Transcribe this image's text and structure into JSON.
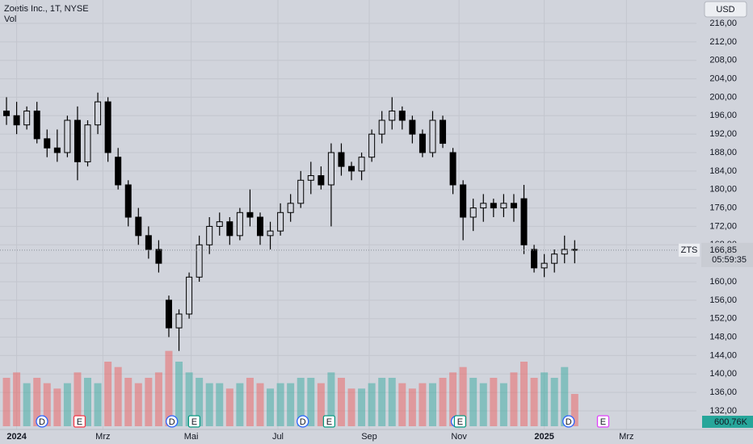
{
  "chart_data": {
    "type": "candlestick",
    "title": "Zoetis Inc., 1T, NYSE",
    "currency": "USD",
    "symbol_badge": "ZTS",
    "countdown": "05:59:35",
    "volume_badge": "600,76K",
    "last_price": {
      "value": 166.85,
      "label": "166,85"
    },
    "candle_color": "#000000",
    "up_color": "rgba(38,166,154,0.45)",
    "down_color": "rgba(239,83,80,0.45)",
    "open": [
      197,
      196,
      194,
      197,
      191,
      189,
      188,
      195,
      186,
      194,
      199,
      187,
      181,
      174,
      170,
      167,
      156,
      150,
      153,
      161,
      168,
      172,
      173,
      170,
      175,
      174,
      170,
      171,
      175,
      177,
      182,
      183,
      181,
      188,
      185,
      184,
      187,
      192,
      195,
      197,
      195,
      192,
      188,
      195,
      188,
      181,
      174,
      176,
      177,
      176,
      177,
      178,
      167,
      163,
      164,
      166,
      167
    ],
    "high": [
      200,
      199,
      198,
      199,
      193,
      193,
      196,
      198,
      195,
      201,
      200,
      189,
      182,
      176,
      172,
      169,
      157,
      154,
      162,
      170,
      174,
      175,
      174,
      176,
      180,
      175,
      173,
      177,
      179,
      184,
      186,
      185,
      190,
      190,
      186,
      188,
      193,
      197,
      200,
      198,
      196,
      193,
      197,
      196,
      189,
      182,
      178,
      179,
      178,
      179,
      179,
      181,
      168,
      166,
      167,
      170,
      169
    ],
    "low": [
      194,
      192,
      193,
      190,
      187,
      186,
      187,
      182,
      185,
      192,
      186,
      180,
      172,
      168,
      165,
      162,
      148,
      145,
      152,
      160,
      166,
      170,
      168,
      169,
      172,
      168,
      167,
      170,
      173,
      176,
      179,
      180,
      172,
      183,
      182,
      182,
      186,
      190,
      193,
      193,
      190,
      187,
      187,
      189,
      179,
      169,
      171,
      173,
      174,
      174,
      173,
      166,
      162,
      161,
      162,
      164,
      164
    ],
    "close": [
      196,
      194,
      197,
      191,
      189,
      188,
      195,
      186,
      194,
      199,
      188,
      181,
      174,
      170,
      167,
      164,
      150,
      153,
      161,
      168,
      172,
      173,
      170,
      175,
      174,
      170,
      171,
      175,
      177,
      182,
      183,
      181,
      188,
      185,
      184,
      187,
      192,
      195,
      197,
      195,
      192,
      188,
      195,
      190,
      181,
      174,
      176,
      177,
      176,
      177,
      176,
      168,
      163,
      164,
      166,
      167,
      166.85
    ],
    "volume": {
      "name": "Vol",
      "ylim": [
        0,
        30
      ],
      "values": [
        9,
        10,
        8,
        9,
        8,
        7,
        8,
        10,
        9,
        8,
        12,
        11,
        9,
        8,
        9,
        10,
        14,
        12,
        10,
        9,
        8,
        8,
        7,
        8,
        9,
        8,
        7,
        8,
        8,
        9,
        9,
        8,
        10,
        9,
        7,
        7,
        8,
        9,
        9,
        8,
        7,
        8,
        8,
        9,
        10,
        11,
        9,
        8,
        9,
        8,
        10,
        12,
        9,
        10,
        9,
        11,
        6
      ]
    },
    "xlim": [
      -0.64,
      68
    ],
    "xticks": [
      {
        "value": 1,
        "label": "2024"
      },
      {
        "value": 9.5,
        "label": "Mrz"
      },
      {
        "value": 18.2,
        "label": "Mai"
      },
      {
        "value": 26.75,
        "label": "Jul"
      },
      {
        "value": 35.75,
        "label": "Sep"
      },
      {
        "value": 44.6,
        "label": "Nov"
      },
      {
        "value": 53,
        "label": "2025"
      },
      {
        "value": 61.1,
        "label": "Mrz"
      }
    ],
    "ylim": [
      132,
      216
    ],
    "yticks": [
      {
        "value": 132,
        "label": "132,00"
      },
      {
        "value": 136,
        "label": "136,00"
      },
      {
        "value": 140,
        "label": "140,00"
      },
      {
        "value": 144,
        "label": "144,00"
      },
      {
        "value": 148,
        "label": "148,00"
      },
      {
        "value": 152,
        "label": "152,00"
      },
      {
        "value": 156,
        "label": "156,00"
      },
      {
        "value": 160,
        "label": "160,00"
      },
      {
        "value": 164,
        "label": "164,00"
      },
      {
        "value": 168,
        "label": "168,00"
      },
      {
        "value": 172,
        "label": "172,00"
      },
      {
        "value": 176,
        "label": "176,00"
      },
      {
        "value": 180,
        "label": "180,00"
      },
      {
        "value": 184,
        "label": "184,00"
      },
      {
        "value": 188,
        "label": "188,00"
      },
      {
        "value": 192,
        "label": "192,00"
      },
      {
        "value": 196,
        "label": "196,00"
      },
      {
        "value": 200,
        "label": "200,00"
      },
      {
        "value": 204,
        "label": "204,00"
      },
      {
        "value": 208,
        "label": "208,00"
      },
      {
        "value": 212,
        "label": "212,00"
      },
      {
        "value": 216,
        "label": "216,00"
      }
    ],
    "grid": true,
    "events": [
      {
        "label": "D",
        "x": 3.5,
        "color": "#2962ff"
      },
      {
        "label": "E",
        "x": 7.2,
        "color": "#f23645"
      },
      {
        "label": "D",
        "x": 16.3,
        "color": "#2962ff"
      },
      {
        "label": "E",
        "x": 18.5,
        "color": "#089981"
      },
      {
        "label": "D",
        "x": 29.2,
        "color": "#2962ff"
      },
      {
        "label": "E",
        "x": 31.8,
        "color": "#089981"
      },
      {
        "label": "D",
        "x": 44.4,
        "color": "#2962ff"
      },
      {
        "label": "E",
        "x": 44.7,
        "color": "#089981"
      },
      {
        "label": "D",
        "x": 55.4,
        "color": "#2962ff"
      },
      {
        "label": "E",
        "x": 58.8,
        "color": "#e040fb"
      }
    ]
  }
}
